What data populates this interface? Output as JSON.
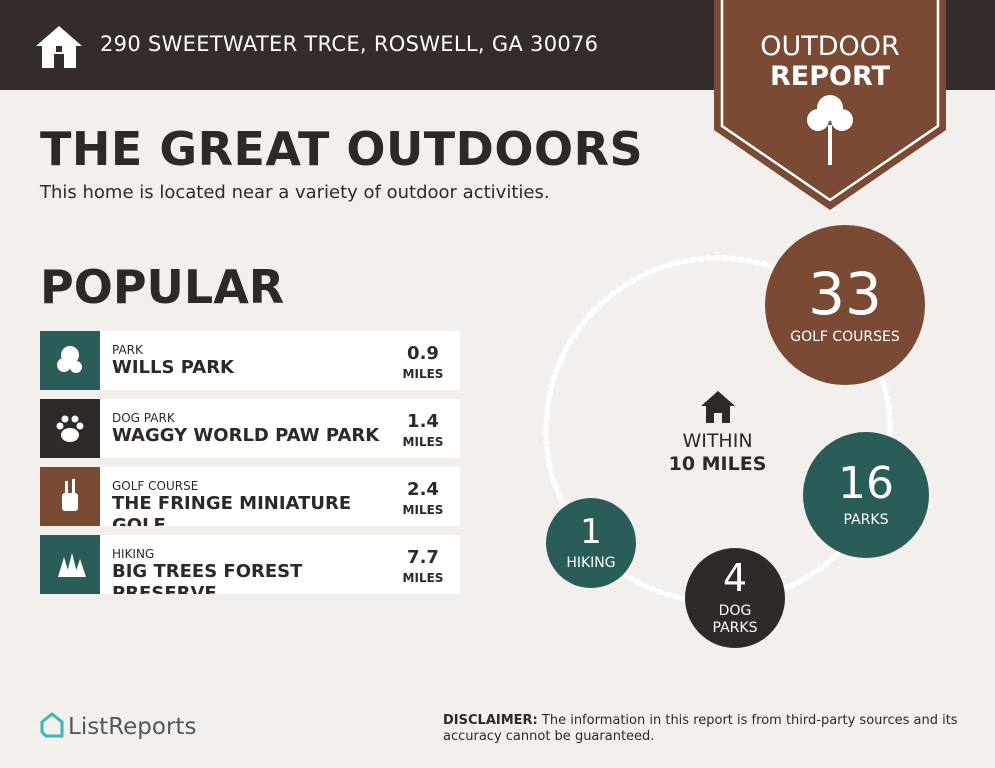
{
  "header": {
    "address": "290 SWEETWATER TRCE, ROSWELL, GA 30076",
    "badge_line1": "OUTDOOR",
    "badge_line2": "REPORT"
  },
  "title": "THE GREAT OUTDOORS",
  "subtitle": "This home is located near a variety of outdoor activities.",
  "popular": {
    "heading": "POPULAR",
    "items": [
      {
        "category": "PARK",
        "name": "WILLS PARK",
        "distance": 0.9,
        "unit": "MILES"
      },
      {
        "category": "DOG PARK",
        "name": "WAGGY WORLD PAW PARK",
        "distance": 1.4,
        "unit": "MILES"
      },
      {
        "category": "GOLF COURSE",
        "name": "THE FRINGE MINIATURE GOLF",
        "distance": 2.4,
        "unit": "MILES"
      },
      {
        "category": "HIKING",
        "name": "BIG TREES FOREST PRESERVE",
        "distance": 7.7,
        "unit": "MILES"
      }
    ]
  },
  "summary": {
    "center_line1": "WITHIN",
    "center_line2": "10 MILES",
    "circles": [
      {
        "count": 33,
        "label": "GOLF COURSES"
      },
      {
        "count": 16,
        "label": "PARKS"
      },
      {
        "count": 4,
        "label": "DOG PARKS"
      },
      {
        "count": 1,
        "label": "HIKING"
      }
    ]
  },
  "footer": {
    "brand": "ListReports",
    "disclaimer_label": "DISCLAIMER:",
    "disclaimer": "The information in this report is from third-party sources and its accuracy cannot be guaranteed."
  }
}
